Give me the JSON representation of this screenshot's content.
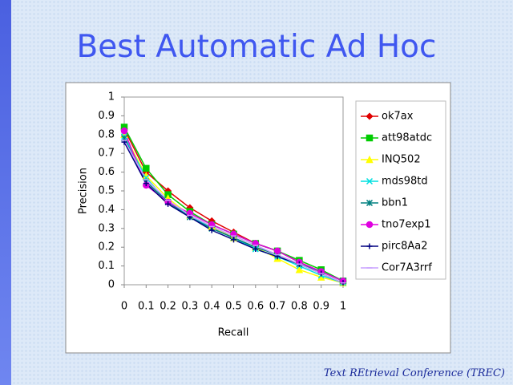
{
  "chart_data": {
    "type": "line",
    "title": "Best Automatic Ad Hoc",
    "x_label": "Recall",
    "y_label": "Precision",
    "footer": "Text REtrieval Conference (TREC)",
    "x": [
      0,
      0.1,
      0.2,
      0.3,
      0.4,
      0.5,
      0.6,
      0.7,
      0.8,
      0.9,
      1
    ],
    "xlim": [
      0,
      1
    ],
    "xticks": [
      0,
      0.1,
      0.2,
      0.3,
      0.4,
      0.5,
      0.6,
      0.7,
      0.8,
      0.9,
      1
    ],
    "ylim": [
      0,
      1
    ],
    "yticks": [
      0,
      0.1,
      0.2,
      0.3,
      0.4,
      0.5,
      0.6,
      0.7,
      0.8,
      0.9,
      1
    ],
    "grid": false,
    "legend": "right",
    "series": [
      {
        "name": "ok7ax",
        "color": "#e00000",
        "marker": "diamond",
        "values": [
          0.83,
          0.6,
          0.5,
          0.41,
          0.34,
          0.28,
          0.22,
          0.18,
          0.12,
          0.07,
          0.02
        ]
      },
      {
        "name": "att98atdc",
        "color": "#00cc00",
        "marker": "square",
        "values": [
          0.84,
          0.62,
          0.48,
          0.39,
          0.32,
          0.27,
          0.22,
          0.18,
          0.13,
          0.08,
          0.02
        ]
      },
      {
        "name": "INQ502",
        "color": "#ffff00",
        "marker": "triangle",
        "values": [
          0.8,
          0.58,
          0.46,
          0.37,
          0.31,
          0.25,
          0.2,
          0.14,
          0.08,
          0.04,
          0.01
        ]
      },
      {
        "name": "mds98td",
        "color": "#00e0e0",
        "marker": "x",
        "values": [
          0.79,
          0.57,
          0.44,
          0.37,
          0.3,
          0.25,
          0.19,
          0.15,
          0.1,
          0.05,
          0.01
        ]
      },
      {
        "name": "bbn1",
        "color": "#008080",
        "marker": "star",
        "values": [
          0.78,
          0.55,
          0.44,
          0.36,
          0.3,
          0.25,
          0.2,
          0.16,
          0.11,
          0.07,
          0.02
        ]
      },
      {
        "name": "tno7exp1",
        "color": "#e000e0",
        "marker": "circle",
        "values": [
          0.82,
          0.53,
          0.44,
          0.38,
          0.32,
          0.27,
          0.22,
          0.18,
          0.12,
          0.07,
          0.02
        ]
      },
      {
        "name": "pirc8Aa2",
        "color": "#000080",
        "marker": "plus",
        "values": [
          0.76,
          0.54,
          0.43,
          0.36,
          0.29,
          0.24,
          0.19,
          0.15,
          0.11,
          0.06,
          0.01
        ]
      },
      {
        "name": "Cor7A3rrf",
        "color": "#c8a0ff",
        "marker": "dash",
        "values": [
          0.77,
          0.56,
          0.45,
          0.37,
          0.31,
          0.26,
          0.21,
          0.16,
          0.11,
          0.06,
          0.01
        ]
      }
    ]
  }
}
